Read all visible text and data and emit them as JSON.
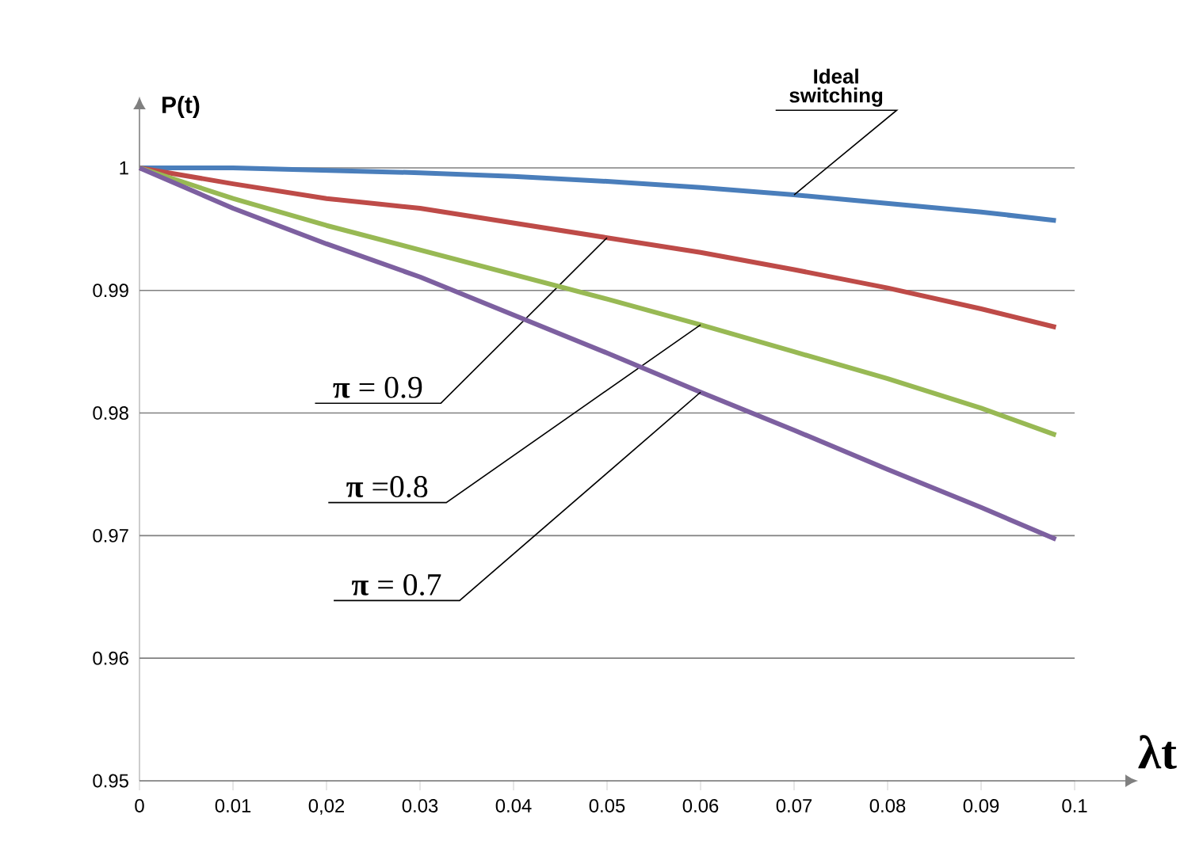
{
  "chart_data": {
    "type": "line",
    "xlabel": "λt",
    "ylabel": "P(t)",
    "x": [
      0,
      0.01,
      0.02,
      0.03,
      0.04,
      0.05,
      0.06,
      0.07,
      0.08,
      0.09,
      0.098
    ],
    "series": [
      {
        "name": "Ideal switching",
        "color": "#4a7ebb",
        "values": [
          1,
          1.0,
          0.9998,
          0.9996,
          0.9993,
          0.9989,
          0.9984,
          0.9978,
          0.9971,
          0.9964,
          0.9957
        ]
      },
      {
        "name": "**π** = 0.9",
        "color": "#be4b48",
        "values": [
          1,
          0.9987,
          0.9975,
          0.9967,
          0.9955,
          0.9943,
          0.9931,
          0.9917,
          0.9902,
          0.9885,
          0.987
        ]
      },
      {
        "name": "**π** =0.8",
        "color": "#98b954",
        "values": [
          1,
          0.9975,
          0.9953,
          0.9933,
          0.9913,
          0.9893,
          0.9872,
          0.985,
          0.9828,
          0.9804,
          0.9782
        ]
      },
      {
        "name": "**π** = 0.7",
        "color": "#7d60a0",
        "values": [
          1,
          0.9967,
          0.9938,
          0.9911,
          0.988,
          0.9849,
          0.9817,
          0.9786,
          0.9754,
          0.9723,
          0.9697
        ]
      }
    ],
    "xlim": [
      0,
      0.1
    ],
    "ylim": [
      0.95,
      1
    ],
    "xticks": [
      0,
      0.01,
      {
        "value": 0.02,
        "label": "0,02"
      },
      0.03,
      0.04,
      0.05,
      0.06,
      0.07,
      0.08,
      0.09,
      0.1
    ],
    "yticks": [
      0.95,
      0.96,
      0.97,
      0.98,
      0.99,
      1
    ],
    "grid": "y",
    "marker": "none",
    "line_style": "solid"
  }
}
